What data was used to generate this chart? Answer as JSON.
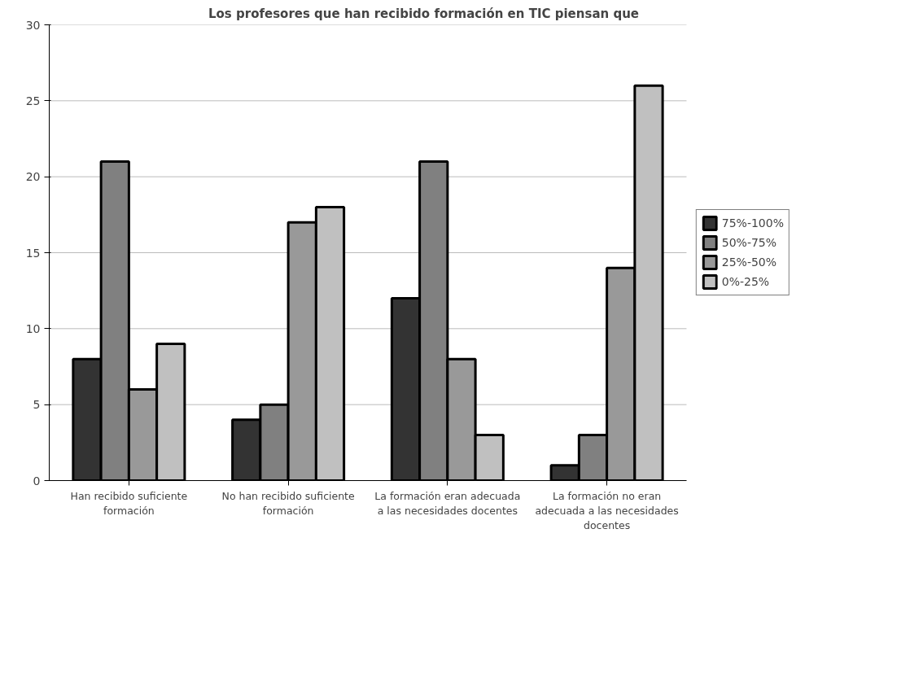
{
  "chart_data": {
    "type": "bar",
    "title": "Los profesores que han recibido formación en TIC piensan que",
    "categories": [
      "Han recibido suficiente formación",
      "No han recibido suficiente formación",
      "La formación eran adecuada a las necesidades docentes",
      "La formación no eran adecuada a las necesidades docentes"
    ],
    "series": [
      {
        "name": "75%-100%",
        "color": "#333333",
        "values": [
          8,
          4,
          12,
          1
        ]
      },
      {
        "name": "50%-75%",
        "color": "#808080",
        "values": [
          21,
          5,
          21,
          3
        ]
      },
      {
        "name": "25%-50%",
        "color": "#999999",
        "values": [
          6,
          17,
          8,
          14
        ]
      },
      {
        "name": "0%-25%",
        "color": "#c0c0c0",
        "values": [
          9,
          18,
          3,
          26
        ]
      }
    ],
    "ylim": [
      0,
      30
    ],
    "yticks": [
      0,
      5,
      10,
      15,
      20,
      25,
      30
    ],
    "grid": "y",
    "legend": "right"
  }
}
